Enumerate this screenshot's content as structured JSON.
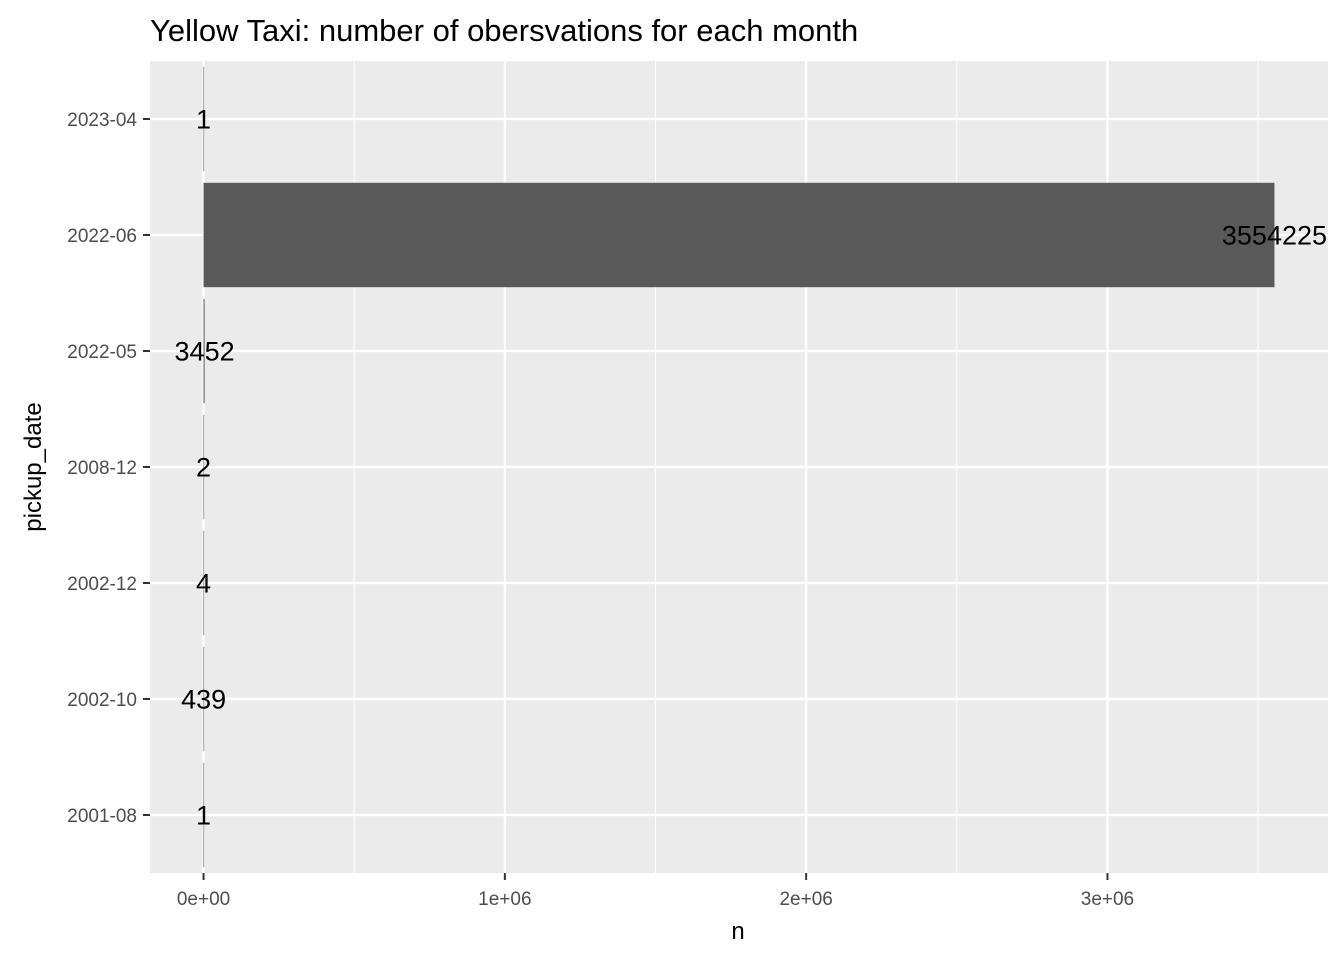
{
  "chart_data": {
    "type": "bar",
    "orientation": "horizontal",
    "title": "Yellow Taxi: number of obersvations for each month",
    "xlabel": "n",
    "ylabel": "pickup_date",
    "categories": [
      "2001-08",
      "2002-10",
      "2002-12",
      "2008-12",
      "2022-05",
      "2022-06",
      "2023-04"
    ],
    "values": [
      1,
      439,
      4,
      2,
      3452,
      3554225,
      1
    ],
    "data_labels": [
      "1",
      "439",
      "4",
      "2",
      "3452",
      "3554225",
      "1"
    ],
    "xlim": [
      -177711,
      3731936
    ],
    "x_ticks": [
      0,
      1000000,
      2000000,
      3000000
    ],
    "x_tick_labels": [
      "0e+00",
      "1e+06",
      "2e+06",
      "3e+06"
    ],
    "grid": true,
    "colors": {
      "panel_background": "#ebebeb",
      "grid": "#ffffff",
      "bar": "#595959",
      "tick": "#333333",
      "tick_text": "#4d4d4d",
      "text": "#000000"
    }
  }
}
